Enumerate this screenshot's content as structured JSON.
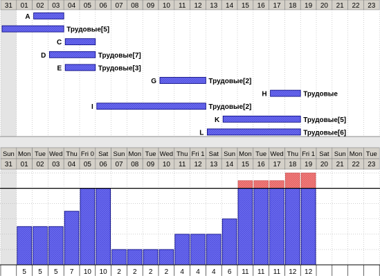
{
  "gantt": {
    "days": [
      "31",
      "01",
      "02",
      "03",
      "04",
      "05",
      "06",
      "07",
      "08",
      "09",
      "10",
      "11",
      "12",
      "13",
      "14",
      "15",
      "16",
      "17",
      "18",
      "19",
      "20",
      "21",
      "22",
      "23"
    ],
    "tasks": [
      {
        "label": "A",
        "start": 2,
        "end": 4,
        "resource": ""
      },
      {
        "label": "B",
        "start": 0,
        "end": 4,
        "resource": "Трудовые[5]"
      },
      {
        "label": "C",
        "start": 4,
        "end": 6,
        "resource": ""
      },
      {
        "label": "D",
        "start": 3,
        "end": 6,
        "resource": "Трудовые[7]"
      },
      {
        "label": "E",
        "start": 4,
        "end": 6,
        "resource": "Трудовые[3]"
      },
      {
        "label": "G",
        "start": 10,
        "end": 13,
        "resource": "Трудовые[2]"
      },
      {
        "label": "H",
        "start": 17,
        "end": 19,
        "resource": "Трудовые"
      },
      {
        "label": "I",
        "start": 6,
        "end": 13,
        "resource": "Трудовые[2]"
      },
      {
        "label": "K",
        "start": 14,
        "end": 19,
        "resource": "Трудовые[5]"
      },
      {
        "label": "L",
        "start": 13,
        "end": 19,
        "resource": "Трудовые[6]"
      }
    ]
  },
  "histogram": {
    "weekdays": [
      "Sun",
      "Mon",
      "Tue",
      "Wed",
      "Thu",
      "Fri 0",
      "Sat",
      "Sun",
      "Mon",
      "Tue",
      "Wed",
      "Thu",
      "Fri 1",
      "Sat",
      "Sun",
      "Mon",
      "Tue",
      "Wed",
      "Thu",
      "Fri 1",
      "Sat",
      "Sun",
      "Mon",
      "Tue"
    ],
    "days": [
      "31",
      "01",
      "02",
      "03",
      "04",
      "05",
      "06",
      "07",
      "08",
      "09",
      "10",
      "11",
      "12",
      "13",
      "14",
      "15",
      "16",
      "17",
      "18",
      "19",
      "20",
      "21",
      "22",
      "23"
    ],
    "capacity": 10,
    "values": [
      null,
      5,
      5,
      5,
      7,
      10,
      10,
      2,
      2,
      2,
      2,
      4,
      4,
      4,
      6,
      11,
      11,
      11,
      12,
      12,
      null,
      null,
      null,
      null
    ],
    "value_labels": [
      "",
      "5",
      "5",
      "5",
      "7",
      "10",
      "10",
      "2",
      "2",
      "2",
      "2",
      "4",
      "4",
      "4",
      "6",
      "11",
      "11",
      "11",
      "12",
      "12",
      "",
      "",
      "",
      ""
    ]
  },
  "colors": {
    "header_bg": "#d4d0c8",
    "bar_fill": "#6b6bf0",
    "bar_stroke": "#00007a",
    "over_fill": "#f07878",
    "grid": "#b0b0b0",
    "weekend_bg": "#e4e4e4"
  }
}
